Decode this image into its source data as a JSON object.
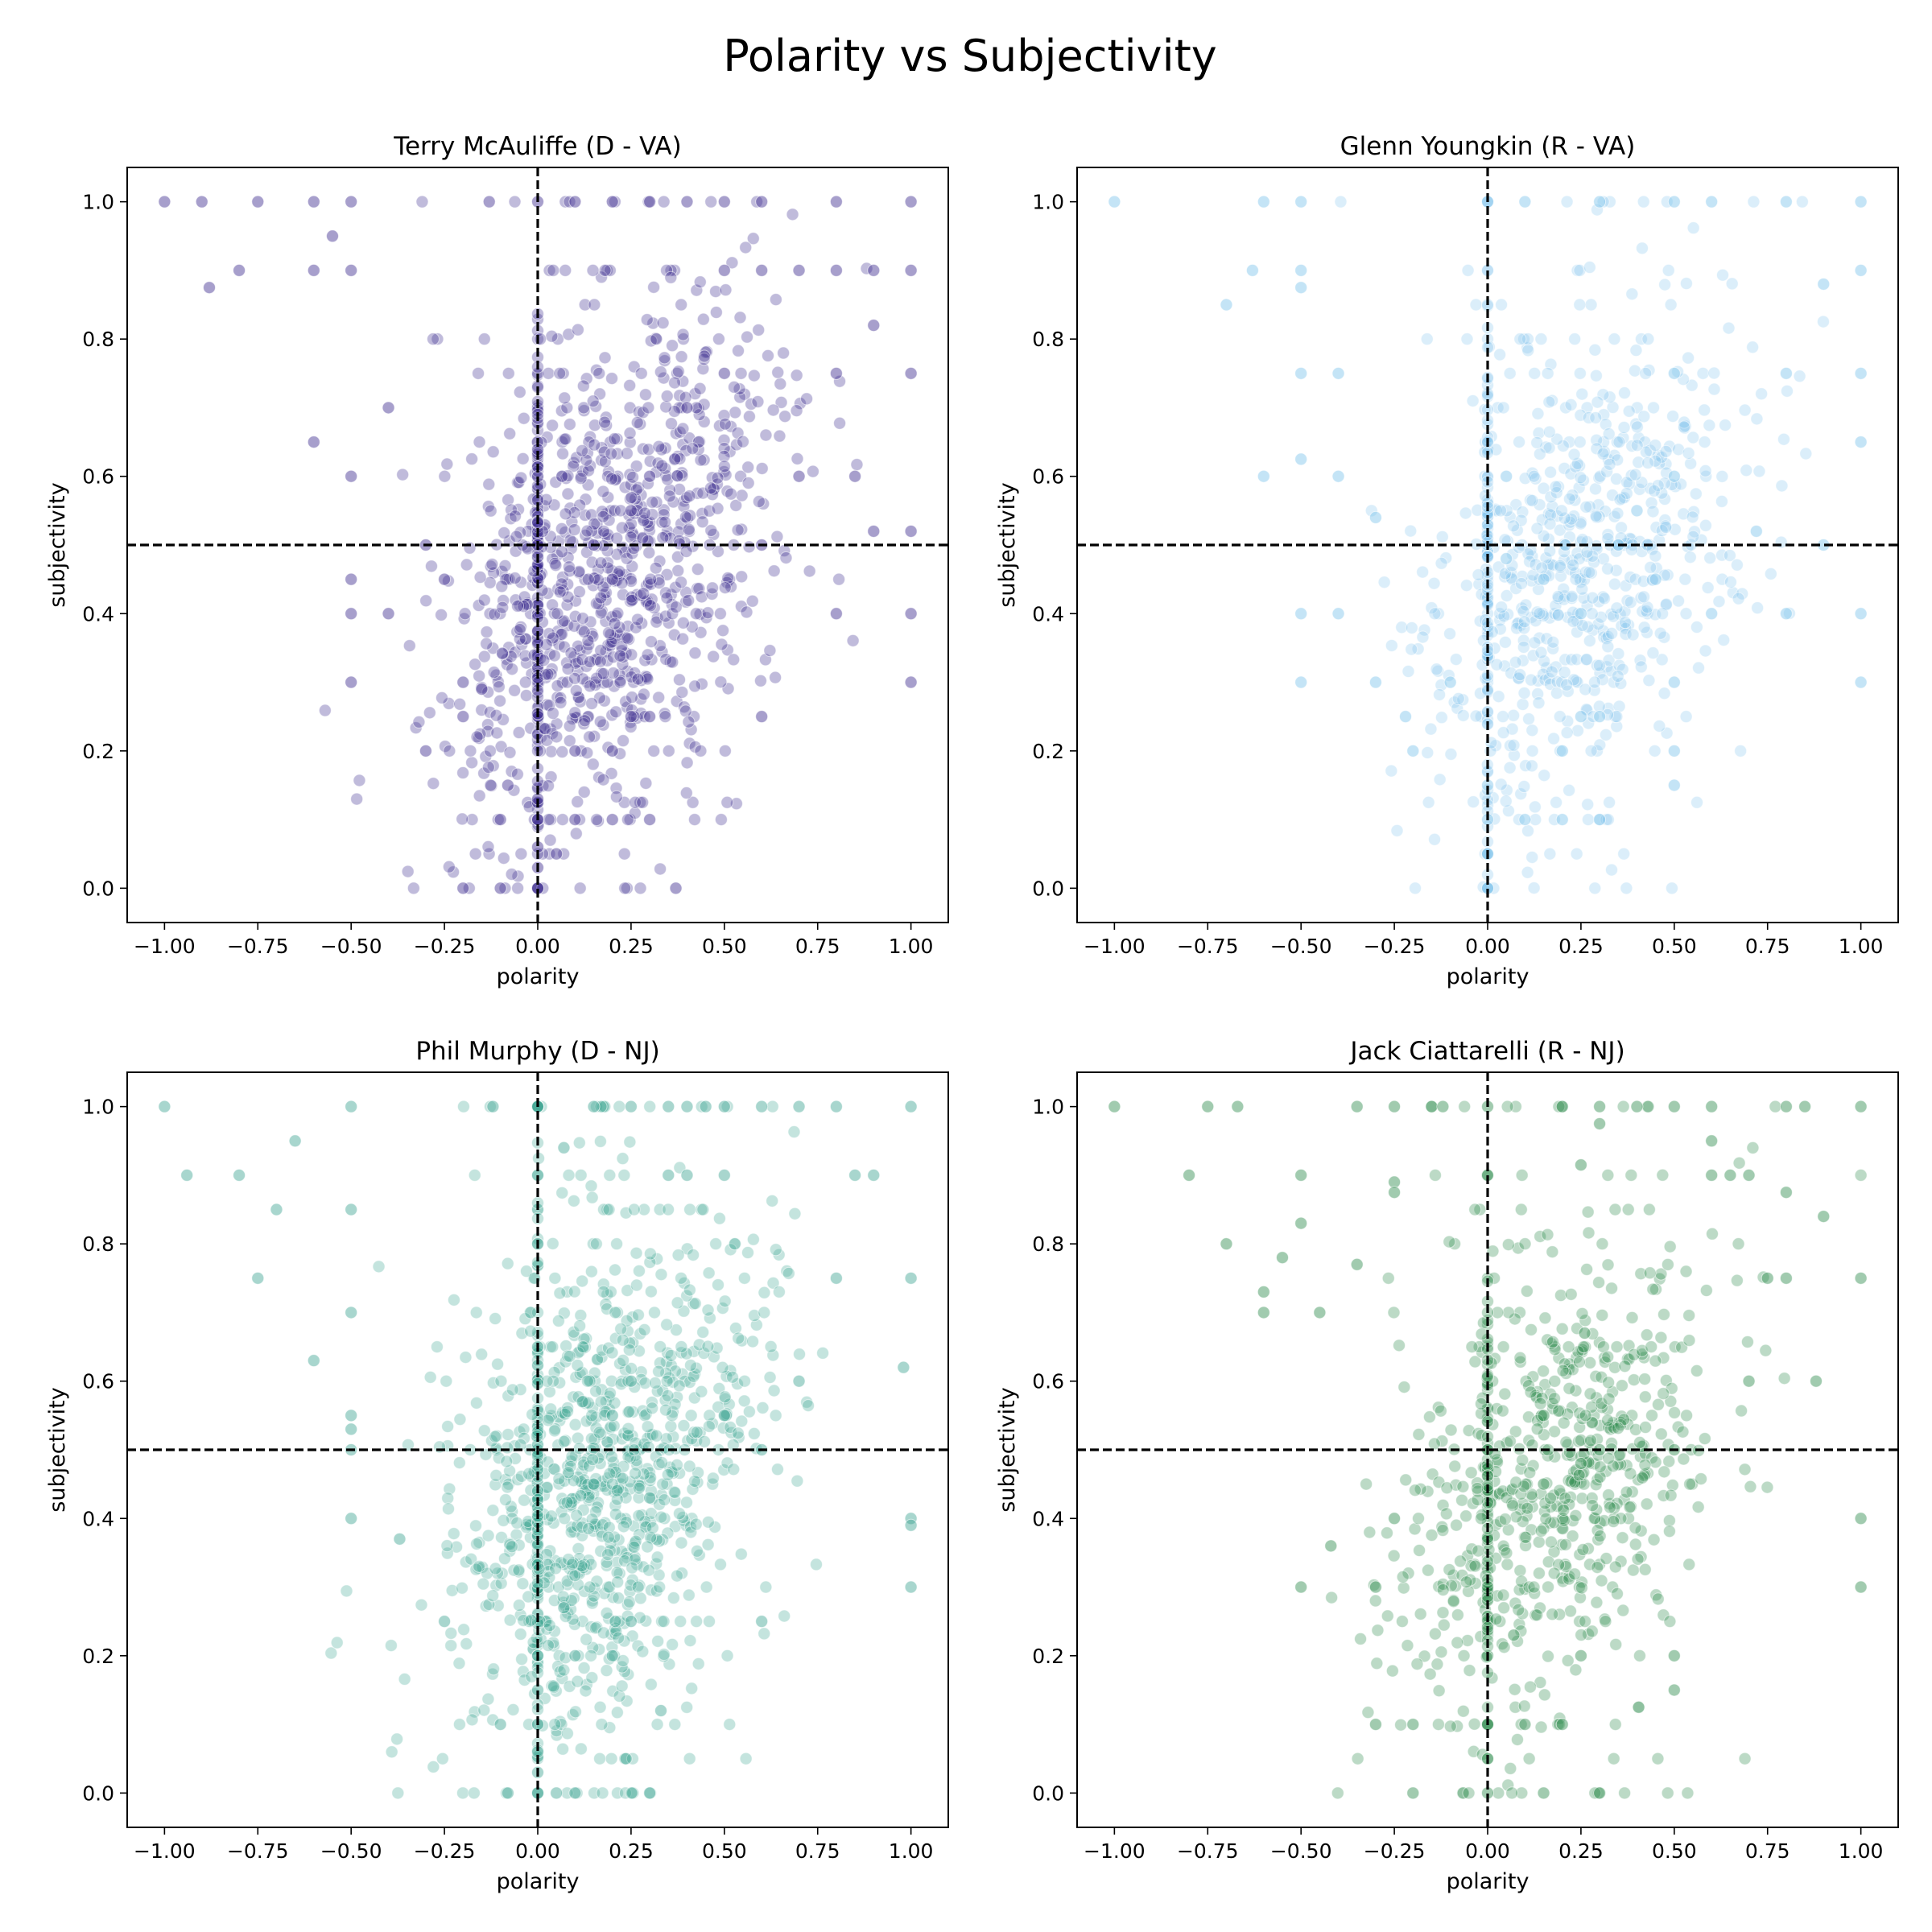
{
  "figure_title": "Polarity vs Subjectivity",
  "chart_data": [
    {
      "type": "scatter",
      "title": "Terry McAuliffe (D - VA)",
      "xlabel": "polarity",
      "ylabel": "subjectivity",
      "xlim": [
        -1.1,
        1.1
      ],
      "ylim": [
        -0.05,
        1.05
      ],
      "xticks": [
        "−1.00",
        "−0.75",
        "−0.50",
        "−0.25",
        "0.00",
        "0.25",
        "0.50",
        "0.75",
        "1.00"
      ],
      "yticks": [
        "0.0",
        "0.2",
        "0.4",
        "0.6",
        "0.8",
        "1.0"
      ],
      "reference_lines": {
        "x": 0.0,
        "y": 0.5,
        "style": "dashed"
      },
      "color": "#3b2a8f",
      "grid": false,
      "cloud": {
        "center_x": 0.2,
        "center_y": 0.47,
        "spread_x": 0.22,
        "spread_y": 0.16,
        "count": 1100,
        "opacity": 0.32
      },
      "points": [
        [
          -1.0,
          1.0
        ],
        [
          -0.9,
          1.0
        ],
        [
          -0.75,
          1.0
        ],
        [
          -0.6,
          1.0
        ],
        [
          -0.5,
          1.0
        ],
        [
          -0.13,
          1.0
        ],
        [
          0.0,
          1.0
        ],
        [
          0.1,
          1.0
        ],
        [
          0.2,
          1.0
        ],
        [
          0.3,
          1.0
        ],
        [
          0.4,
          1.0
        ],
        [
          0.5,
          1.0
        ],
        [
          0.6,
          1.0
        ],
        [
          0.8,
          1.0
        ],
        [
          1.0,
          1.0
        ],
        [
          -0.88,
          0.875
        ],
        [
          -0.8,
          0.9
        ],
        [
          -0.6,
          0.9
        ],
        [
          -0.5,
          0.9
        ],
        [
          -0.55,
          0.95
        ],
        [
          0.5,
          0.9
        ],
        [
          0.6,
          0.9
        ],
        [
          0.7,
          0.9
        ],
        [
          0.8,
          0.9
        ],
        [
          0.9,
          0.9
        ],
        [
          1.0,
          0.9
        ],
        [
          0.9,
          0.82
        ],
        [
          -0.6,
          0.65
        ],
        [
          -0.5,
          0.6
        ],
        [
          -0.4,
          0.7
        ],
        [
          -0.3,
          0.5
        ],
        [
          -0.25,
          0.45
        ],
        [
          -0.5,
          0.45
        ],
        [
          -0.5,
          0.4
        ],
        [
          -0.4,
          0.4
        ],
        [
          -0.5,
          0.3
        ],
        [
          -0.2,
          0.3
        ],
        [
          -0.15,
          0.29
        ],
        [
          -0.3,
          0.2
        ],
        [
          -0.2,
          0.25
        ],
        [
          -0.1,
          0.1
        ],
        [
          -0.08,
          0.15
        ],
        [
          -0.1,
          0.0
        ],
        [
          0.0,
          0.0
        ],
        [
          0.0,
          0.03
        ],
        [
          0.0,
          0.06
        ],
        [
          0.0,
          0.1
        ],
        [
          0.0,
          0.13
        ],
        [
          0.05,
          0.05
        ],
        [
          0.1,
          0.1
        ],
        [
          0.2,
          0.1
        ],
        [
          0.3,
          0.1
        ],
        [
          0.1,
          0.2
        ],
        [
          0.2,
          0.2
        ],
        [
          0.25,
          0.25
        ],
        [
          0.3,
          0.25
        ],
        [
          0.6,
          0.25
        ],
        [
          0.8,
          0.4
        ],
        [
          0.85,
          0.6
        ],
        [
          0.9,
          0.52
        ],
        [
          1.0,
          0.3
        ],
        [
          1.0,
          0.4
        ],
        [
          1.0,
          0.52
        ],
        [
          1.0,
          0.75
        ],
        [
          0.8,
          0.75
        ],
        [
          0.5,
          0.75
        ],
        [
          0.4,
          0.7
        ],
        [
          0.3,
          0.6
        ],
        [
          0.25,
          0.55
        ],
        [
          0.15,
          0.5
        ],
        [
          0.0,
          0.5
        ],
        [
          0.2,
          0.45
        ],
        [
          0.37,
          0.0
        ],
        [
          -0.2,
          0.0
        ],
        [
          0.7,
          0.6
        ],
        [
          0.6,
          0.5
        ]
      ]
    },
    {
      "type": "scatter",
      "title": "Glenn Youngkin (R - VA)",
      "xlabel": "polarity",
      "ylabel": "subjectivity",
      "xlim": [
        -1.1,
        1.1
      ],
      "ylim": [
        -0.05,
        1.05
      ],
      "xticks": [
        "−1.00",
        "−0.75",
        "−0.50",
        "−0.25",
        "0.00",
        "0.25",
        "0.50",
        "0.75",
        "1.00"
      ],
      "yticks": [
        "0.0",
        "0.2",
        "0.4",
        "0.6",
        "0.8",
        "1.0"
      ],
      "reference_lines": {
        "x": 0.0,
        "y": 0.5,
        "style": "dashed"
      },
      "color": "#7cc3ec",
      "grid": false,
      "cloud": {
        "center_x": 0.25,
        "center_y": 0.46,
        "spread_x": 0.22,
        "spread_y": 0.15,
        "count": 800,
        "opacity": 0.28
      },
      "points": [
        [
          -1.0,
          1.0
        ],
        [
          -0.6,
          1.0
        ],
        [
          -0.5,
          1.0
        ],
        [
          0.0,
          1.0
        ],
        [
          0.1,
          1.0
        ],
        [
          0.3,
          1.0
        ],
        [
          0.5,
          1.0
        ],
        [
          0.6,
          1.0
        ],
        [
          0.8,
          1.0
        ],
        [
          1.0,
          1.0
        ],
        [
          -0.5,
          0.9
        ],
        [
          -0.5,
          0.875
        ],
        [
          -0.63,
          0.9
        ],
        [
          -0.7,
          0.85
        ],
        [
          -0.4,
          0.75
        ],
        [
          -0.5,
          0.75
        ],
        [
          -0.6,
          0.6
        ],
        [
          -0.5,
          0.625
        ],
        [
          -0.4,
          0.6
        ],
        [
          -0.4,
          0.4
        ],
        [
          -0.5,
          0.4
        ],
        [
          -0.5,
          0.3
        ],
        [
          -0.3,
          0.3
        ],
        [
          -0.22,
          0.25
        ],
        [
          -0.2,
          0.2
        ],
        [
          -0.1,
          0.3
        ],
        [
          0.0,
          0.0
        ],
        [
          0.0,
          0.05
        ],
        [
          0.0,
          0.1
        ],
        [
          0.0,
          0.15
        ],
        [
          0.1,
          0.1
        ],
        [
          0.2,
          0.1
        ],
        [
          0.3,
          0.1
        ],
        [
          0.25,
          0.25
        ],
        [
          0.3,
          0.25
        ],
        [
          0.2,
          0.2
        ],
        [
          0.5,
          0.2
        ],
        [
          0.5,
          0.15
        ],
        [
          0.5,
          0.3
        ],
        [
          0.6,
          0.4
        ],
        [
          0.8,
          0.4
        ],
        [
          0.9,
          0.5
        ],
        [
          1.0,
          0.3
        ],
        [
          1.0,
          0.4
        ],
        [
          1.0,
          0.65
        ],
        [
          1.0,
          0.75
        ],
        [
          1.0,
          0.9
        ],
        [
          0.8,
          0.75
        ],
        [
          0.9,
          0.88
        ],
        [
          0.5,
          0.75
        ],
        [
          0.5,
          0.6
        ],
        [
          0.4,
          0.55
        ],
        [
          0.25,
          0.4
        ],
        [
          0.15,
          0.45
        ],
        [
          0.05,
          0.48
        ],
        [
          0.35,
          0.5
        ],
        [
          0.45,
          0.45
        ],
        [
          0.72,
          0.52
        ],
        [
          -0.3,
          0.54
        ],
        [
          0.05,
          0.6
        ]
      ]
    },
    {
      "type": "scatter",
      "title": "Phil Murphy (D - NJ)",
      "xlabel": "polarity",
      "ylabel": "subjectivity",
      "xlim": [
        -1.1,
        1.1
      ],
      "ylim": [
        -0.05,
        1.05
      ],
      "xticks": [
        "−1.00",
        "−0.75",
        "−0.50",
        "−0.25",
        "0.00",
        "0.25",
        "0.50",
        "0.75",
        "1.00"
      ],
      "yticks": [
        "0.0",
        "0.2",
        "0.4",
        "0.6",
        "0.8",
        "1.0"
      ],
      "reference_lines": {
        "x": 0.0,
        "y": 0.5,
        "style": "dashed"
      },
      "color": "#3da492",
      "grid": false,
      "cloud": {
        "center_x": 0.18,
        "center_y": 0.46,
        "spread_x": 0.21,
        "spread_y": 0.16,
        "count": 1100,
        "opacity": 0.3
      },
      "points": [
        [
          -1.0,
          1.0
        ],
        [
          -0.5,
          1.0
        ],
        [
          -0.12,
          1.0
        ],
        [
          0.0,
          1.0
        ],
        [
          0.15,
          1.0
        ],
        [
          0.25,
          1.0
        ],
        [
          0.35,
          1.0
        ],
        [
          0.4,
          1.0
        ],
        [
          0.45,
          1.0
        ],
        [
          0.5,
          1.0
        ],
        [
          0.6,
          1.0
        ],
        [
          0.7,
          1.0
        ],
        [
          0.8,
          1.0
        ],
        [
          1.0,
          1.0
        ],
        [
          -0.94,
          0.9
        ],
        [
          -0.8,
          0.9
        ],
        [
          -0.65,
          0.95
        ],
        [
          -0.7,
          0.85
        ],
        [
          -0.5,
          0.85
        ],
        [
          0.07,
          0.94
        ],
        [
          0.35,
          0.9
        ],
        [
          0.4,
          0.9
        ],
        [
          0.5,
          0.9
        ],
        [
          0.9,
          0.9
        ],
        [
          0.85,
          0.9
        ],
        [
          -0.75,
          0.75
        ],
        [
          -0.5,
          0.7
        ],
        [
          -0.6,
          0.63
        ],
        [
          -0.5,
          0.55
        ],
        [
          -0.5,
          0.53
        ],
        [
          -0.5,
          0.5
        ],
        [
          -0.5,
          0.4
        ],
        [
          -0.37,
          0.37
        ],
        [
          -0.25,
          0.25
        ],
        [
          -0.1,
          0.1
        ],
        [
          -0.08,
          0.0
        ],
        [
          0.0,
          0.0
        ],
        [
          0.0,
          0.03
        ],
        [
          0.0,
          0.06
        ],
        [
          0.0,
          0.1
        ],
        [
          0.0,
          0.15
        ],
        [
          0.05,
          0.0
        ],
        [
          0.1,
          0.0
        ],
        [
          0.3,
          0.0
        ],
        [
          0.1,
          0.2
        ],
        [
          0.2,
          0.2
        ],
        [
          0.25,
          0.25
        ],
        [
          0.07,
          0.27
        ],
        [
          0.6,
          0.25
        ],
        [
          1.0,
          0.3
        ],
        [
          1.0,
          0.4
        ],
        [
          1.0,
          0.39
        ],
        [
          0.98,
          0.62
        ],
        [
          1.0,
          0.75
        ],
        [
          0.8,
          0.75
        ],
        [
          0.7,
          0.6
        ],
        [
          0.6,
          0.5
        ],
        [
          0.5,
          0.55
        ],
        [
          0.3,
          0.43
        ],
        [
          0.15,
          0.45
        ],
        [
          0.2,
          0.55
        ],
        [
          0.25,
          0.6
        ],
        [
          0.12,
          0.57
        ],
        [
          0.33,
          0.12
        ],
        [
          0.0,
          0.8
        ],
        [
          0.0,
          0.9
        ]
      ]
    },
    {
      "type": "scatter",
      "title": "Jack Ciattarelli (R - NJ)",
      "xlabel": "polarity",
      "ylabel": "subjectivity",
      "xlim": [
        -1.1,
        1.1
      ],
      "ylim": [
        -0.05,
        1.05
      ],
      "xticks": [
        "−1.00",
        "−0.75",
        "−0.50",
        "−0.25",
        "0.00",
        "0.25",
        "0.50",
        "0.75",
        "1.00"
      ],
      "yticks": [
        "0.0",
        "0.2",
        "0.4",
        "0.6",
        "0.8",
        "1.0"
      ],
      "reference_lines": {
        "x": 0.0,
        "y": 0.5,
        "style": "dashed"
      },
      "color": "#2e8b4e",
      "grid": false,
      "cloud": {
        "center_x": 0.18,
        "center_y": 0.45,
        "spread_x": 0.22,
        "spread_y": 0.15,
        "count": 750,
        "opacity": 0.32
      },
      "points": [
        [
          -1.0,
          1.0
        ],
        [
          -0.75,
          1.0
        ],
        [
          -0.67,
          1.0
        ],
        [
          -0.35,
          1.0
        ],
        [
          -0.25,
          1.0
        ],
        [
          -0.15,
          1.0
        ],
        [
          -0.12,
          1.0
        ],
        [
          0.0,
          1.0
        ],
        [
          0.2,
          1.0
        ],
        [
          0.3,
          1.0
        ],
        [
          0.4,
          1.0
        ],
        [
          0.5,
          1.0
        ],
        [
          0.6,
          1.0
        ],
        [
          0.8,
          1.0
        ],
        [
          0.85,
          1.0
        ],
        [
          1.0,
          1.0
        ],
        [
          0.3,
          0.975
        ],
        [
          -0.8,
          0.9
        ],
        [
          -0.5,
          0.9
        ],
        [
          -0.25,
          0.89
        ],
        [
          -0.25,
          0.875
        ],
        [
          0.25,
          0.915
        ],
        [
          0.6,
          0.9
        ],
        [
          0.6,
          0.95
        ],
        [
          0.65,
          0.9
        ],
        [
          0.7,
          0.9
        ],
        [
          0.8,
          0.875
        ],
        [
          0.9,
          0.84
        ],
        [
          -0.7,
          0.8
        ],
        [
          -0.5,
          0.83
        ],
        [
          -0.55,
          0.78
        ],
        [
          -0.35,
          0.77
        ],
        [
          -0.6,
          0.7
        ],
        [
          -0.45,
          0.7
        ],
        [
          -0.6,
          0.73
        ],
        [
          0.8,
          0.75
        ],
        [
          1.0,
          0.75
        ],
        [
          0.75,
          0.75
        ],
        [
          0.7,
          0.6
        ],
        [
          0.88,
          0.6
        ],
        [
          0.5,
          0.5
        ],
        [
          0.3,
          0.5
        ],
        [
          0.15,
          0.55
        ],
        [
          0.25,
          0.48
        ],
        [
          0.15,
          0.45
        ],
        [
          0.26,
          0.67
        ],
        [
          -0.42,
          0.36
        ],
        [
          -0.5,
          0.3
        ],
        [
          -0.3,
          0.3
        ],
        [
          -0.25,
          0.4
        ],
        [
          -0.3,
          0.1
        ],
        [
          -0.2,
          0.1
        ],
        [
          -0.2,
          0.0
        ],
        [
          0.0,
          0.0
        ],
        [
          0.0,
          0.05
        ],
        [
          0.0,
          0.1
        ],
        [
          0.1,
          0.1
        ],
        [
          0.2,
          0.1
        ],
        [
          0.07,
          0.23
        ],
        [
          0.25,
          0.2
        ],
        [
          0.5,
          0.2
        ],
        [
          0.5,
          0.15
        ],
        [
          0.15,
          0.0
        ],
        [
          0.3,
          0.0
        ],
        [
          1.0,
          0.3
        ],
        [
          1.0,
          0.4
        ]
      ]
    }
  ]
}
